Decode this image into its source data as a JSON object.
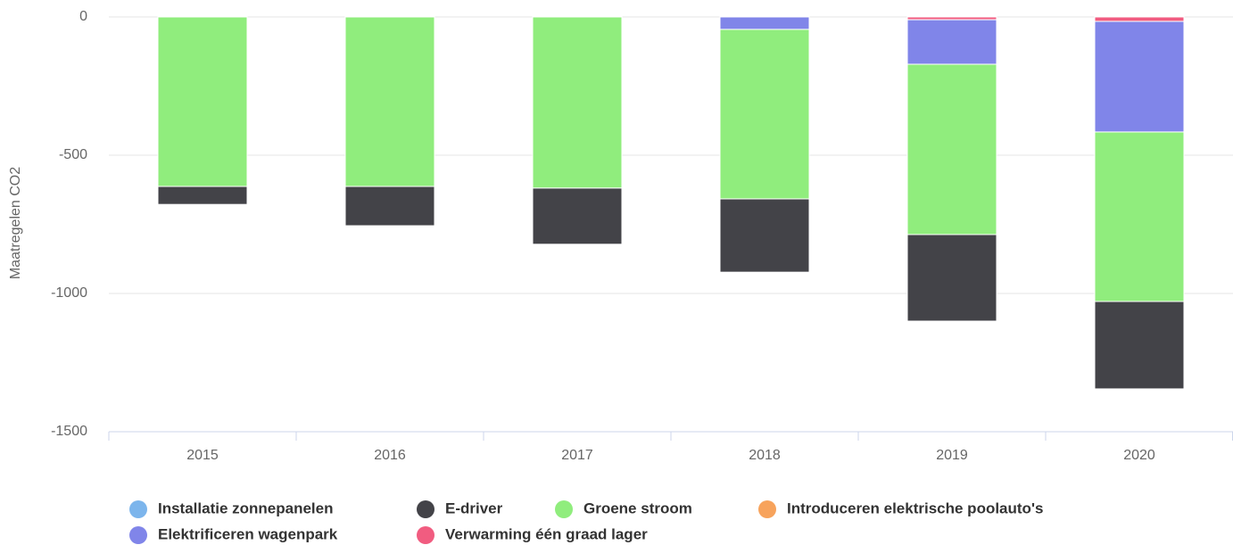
{
  "chart_data": {
    "type": "stacked_bar",
    "y_axis_label": "Maatregelen CO2",
    "categories": [
      "2015",
      "2016",
      "2017",
      "2018",
      "2019",
      "2020"
    ],
    "series": [
      {
        "name": "Installatie zonnepanelen",
        "color": "#7cb5ec",
        "values": [
          0,
          0,
          0,
          0,
          0,
          0
        ]
      },
      {
        "name": "E-driver",
        "color": "#434348",
        "values": [
          -65,
          -142,
          -203,
          -265,
          -313,
          -316
        ]
      },
      {
        "name": "Groene stroom",
        "color": "#90ed7d",
        "values": [
          -613,
          -613,
          -619,
          -613,
          -616,
          -613
        ]
      },
      {
        "name": "Introduceren elektrische poolauto's",
        "color": "#f7a35c",
        "values": [
          0,
          0,
          0,
          0,
          0,
          0
        ]
      },
      {
        "name": "Elektrificeren wagenpark",
        "color": "#8085e9",
        "values": [
          0,
          0,
          0,
          -45,
          -161,
          -400
        ]
      },
      {
        "name": "Verwarming één graad lager",
        "color": "#f15c80",
        "values": [
          0,
          0,
          0,
          0,
          -10,
          -16
        ]
      }
    ],
    "ylim": [
      -1500,
      0
    ],
    "yticks": [
      -1500,
      -1000,
      -500,
      0
    ],
    "grid": true
  }
}
